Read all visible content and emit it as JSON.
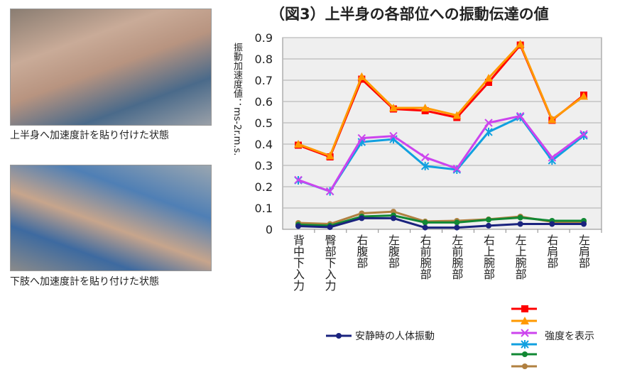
{
  "photos": [
    {
      "caption": "上半身へ加速度計を貼り付けた状態"
    },
    {
      "caption": "下肢へ加速度計を貼り付けた状態"
    }
  ],
  "chart_data": {
    "type": "line",
    "title": "（図3）上半身の各部位への振動伝達の値",
    "ylabel": "振動加速度値：ms-2r.m.s.",
    "ylim": [
      0,
      0.9
    ],
    "yticks": [
      "0",
      "0.1",
      "0.2",
      "0.3",
      "0.4",
      "0.5",
      "0.6",
      "0.7",
      "0.8",
      "0.9"
    ],
    "grid": true,
    "categories": [
      "背中下入力",
      "臀部下入力",
      "右腹部",
      "左腹部",
      "右前腕部",
      "左前腕部",
      "右上腕部",
      "左上腕部",
      "右肩部",
      "左肩部"
    ],
    "series": [
      {
        "color": "#ff0000",
        "marker": "square",
        "values": [
          0.395,
          0.34,
          0.705,
          0.565,
          0.557,
          0.525,
          0.69,
          0.865,
          0.512,
          0.63
        ]
      },
      {
        "color": "#ff9900",
        "marker": "triangle",
        "values": [
          0.4,
          0.345,
          0.717,
          0.57,
          0.57,
          0.535,
          0.71,
          0.87,
          0.515,
          0.625
        ]
      },
      {
        "color": "#cc44ee",
        "marker": "x",
        "values": [
          0.232,
          0.178,
          0.428,
          0.438,
          0.338,
          0.285,
          0.5,
          0.532,
          0.337,
          0.447
        ]
      },
      {
        "color": "#11a0e0",
        "marker": "asterisk",
        "values": [
          0.23,
          0.178,
          0.41,
          0.423,
          0.297,
          0.28,
          0.457,
          0.527,
          0.323,
          0.44
        ]
      },
      {
        "color": "#118833",
        "marker": "circle",
        "values": [
          0.022,
          0.017,
          0.06,
          0.065,
          0.032,
          0.032,
          0.045,
          0.055,
          0.04,
          0.04
        ]
      },
      {
        "color": "#b08040",
        "marker": "circle",
        "values": [
          0.03,
          0.025,
          0.075,
          0.083,
          0.037,
          0.04,
          0.047,
          0.06,
          0.035,
          0.035
        ]
      },
      {
        "name": "安静時の人体振動",
        "color": "#1a237e",
        "marker": "circle",
        "values": [
          0.015,
          0.01,
          0.052,
          0.052,
          0.008,
          0.008,
          0.017,
          0.025,
          0.025,
          0.025
        ]
      }
    ],
    "legend": {
      "rest_label": "安静時の人体振動",
      "intensity_label": "強度を表示",
      "placement": "bottom"
    }
  }
}
